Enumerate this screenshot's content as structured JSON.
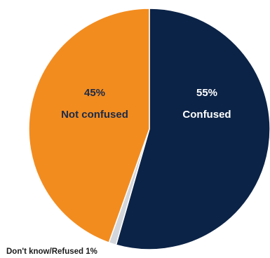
{
  "chart_data": {
    "type": "pie",
    "title": "",
    "slices": [
      {
        "label": "Confused",
        "value": 55,
        "value_label": "55%",
        "color": "#0B2347",
        "text_color": "#FFFFFF"
      },
      {
        "label": "Don't know/Refused",
        "value": 1,
        "value_label": "1%",
        "color": "#D3D6DB",
        "text_color": "#1B1B1B"
      },
      {
        "label": "Not confused",
        "value": 45,
        "value_label": "45%",
        "color": "#F28C1F",
        "text_color": "#1B2A4A"
      }
    ],
    "small_label_text": "Don't know/Refused 1%",
    "start_angle_deg": 0,
    "direction": "clockwise"
  }
}
